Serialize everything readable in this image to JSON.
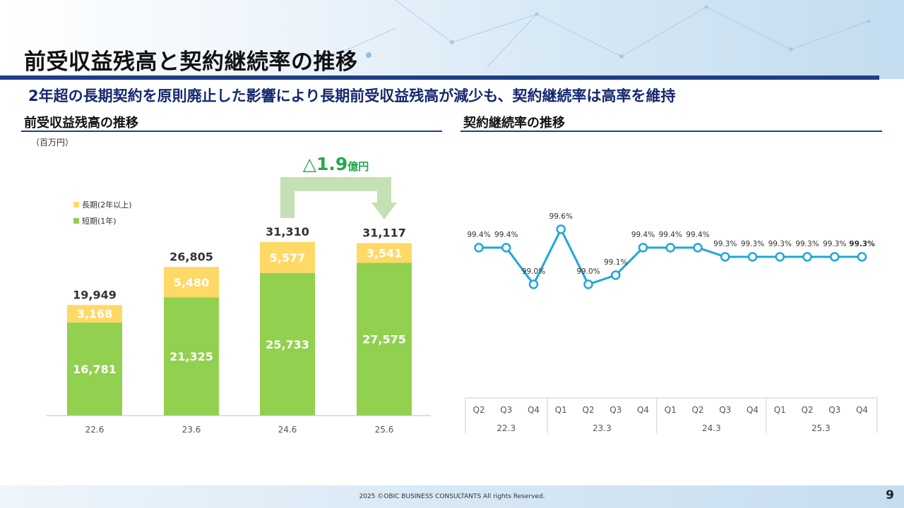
{
  "header": {
    "title": "前受収益残高と契約継続率の推移",
    "subtitle": "2年超の長期契約を原則廃止した影響により長期前受収益残高が減少も、契約継続率は高率を維持"
  },
  "left": {
    "section_title": "前受収益残高の推移",
    "unit": "（百万円）",
    "annotation": {
      "prefix": "△1.9",
      "suffix": "億円"
    }
  },
  "right": {
    "section_title": "契約継続率の推移"
  },
  "footer": {
    "copyright": "2025 ©OBIC BUSINESS CONSULTANTS All rights Reserved.",
    "page": "9"
  },
  "colors": {
    "short_term": "#92d050",
    "long_term": "#ffd966",
    "line": "#1ea7d8",
    "navy": "#1f3e86",
    "annotation": "#22a84a"
  },
  "chart_data": [
    {
      "type": "bar",
      "stacked": true,
      "categories": [
        "22.6",
        "23.6",
        "24.6",
        "25.6"
      ],
      "series": [
        {
          "name": "短期(1年)",
          "values": [
            16781,
            21325,
            25733,
            27575
          ]
        },
        {
          "name": "長期(2年以上)",
          "values": [
            3168,
            5480,
            5577,
            3541
          ]
        }
      ],
      "totals": [
        19949,
        26805,
        31310,
        31117
      ],
      "total_labels": [
        "19,949",
        "26,805",
        "31,310",
        "31,117"
      ],
      "short_labels": [
        "16,781",
        "21,325",
        "25,733",
        "27,575"
      ],
      "long_labels": [
        "3,168",
        "5,480",
        "5,577",
        "3,541"
      ],
      "legend_position": "top-left"
    },
    {
      "type": "line",
      "x": [
        "Q2",
        "Q3",
        "Q4",
        "Q1",
        "Q2",
        "Q3",
        "Q4",
        "Q1",
        "Q2",
        "Q3",
        "Q4",
        "Q1",
        "Q2",
        "Q3",
        "Q4"
      ],
      "groups": [
        {
          "label": "22.3",
          "count": 3
        },
        {
          "label": "23.3",
          "count": 4
        },
        {
          "label": "24.3",
          "count": 4
        },
        {
          "label": "25.3",
          "count": 4
        }
      ],
      "values": [
        99.4,
        99.4,
        99.0,
        99.6,
        99.0,
        99.1,
        99.4,
        99.4,
        99.4,
        99.3,
        99.3,
        99.3,
        99.3,
        99.3,
        99.3
      ],
      "value_labels": [
        "99.4%",
        "99.4%",
        "99.0%",
        "99.6%",
        "99.0%",
        "99.1%",
        "99.4%",
        "99.4%",
        "99.4%",
        "99.3%",
        "99.3%",
        "99.3%",
        "99.3%",
        "99.3%",
        "99.3%"
      ],
      "last_label_bold": true
    }
  ]
}
